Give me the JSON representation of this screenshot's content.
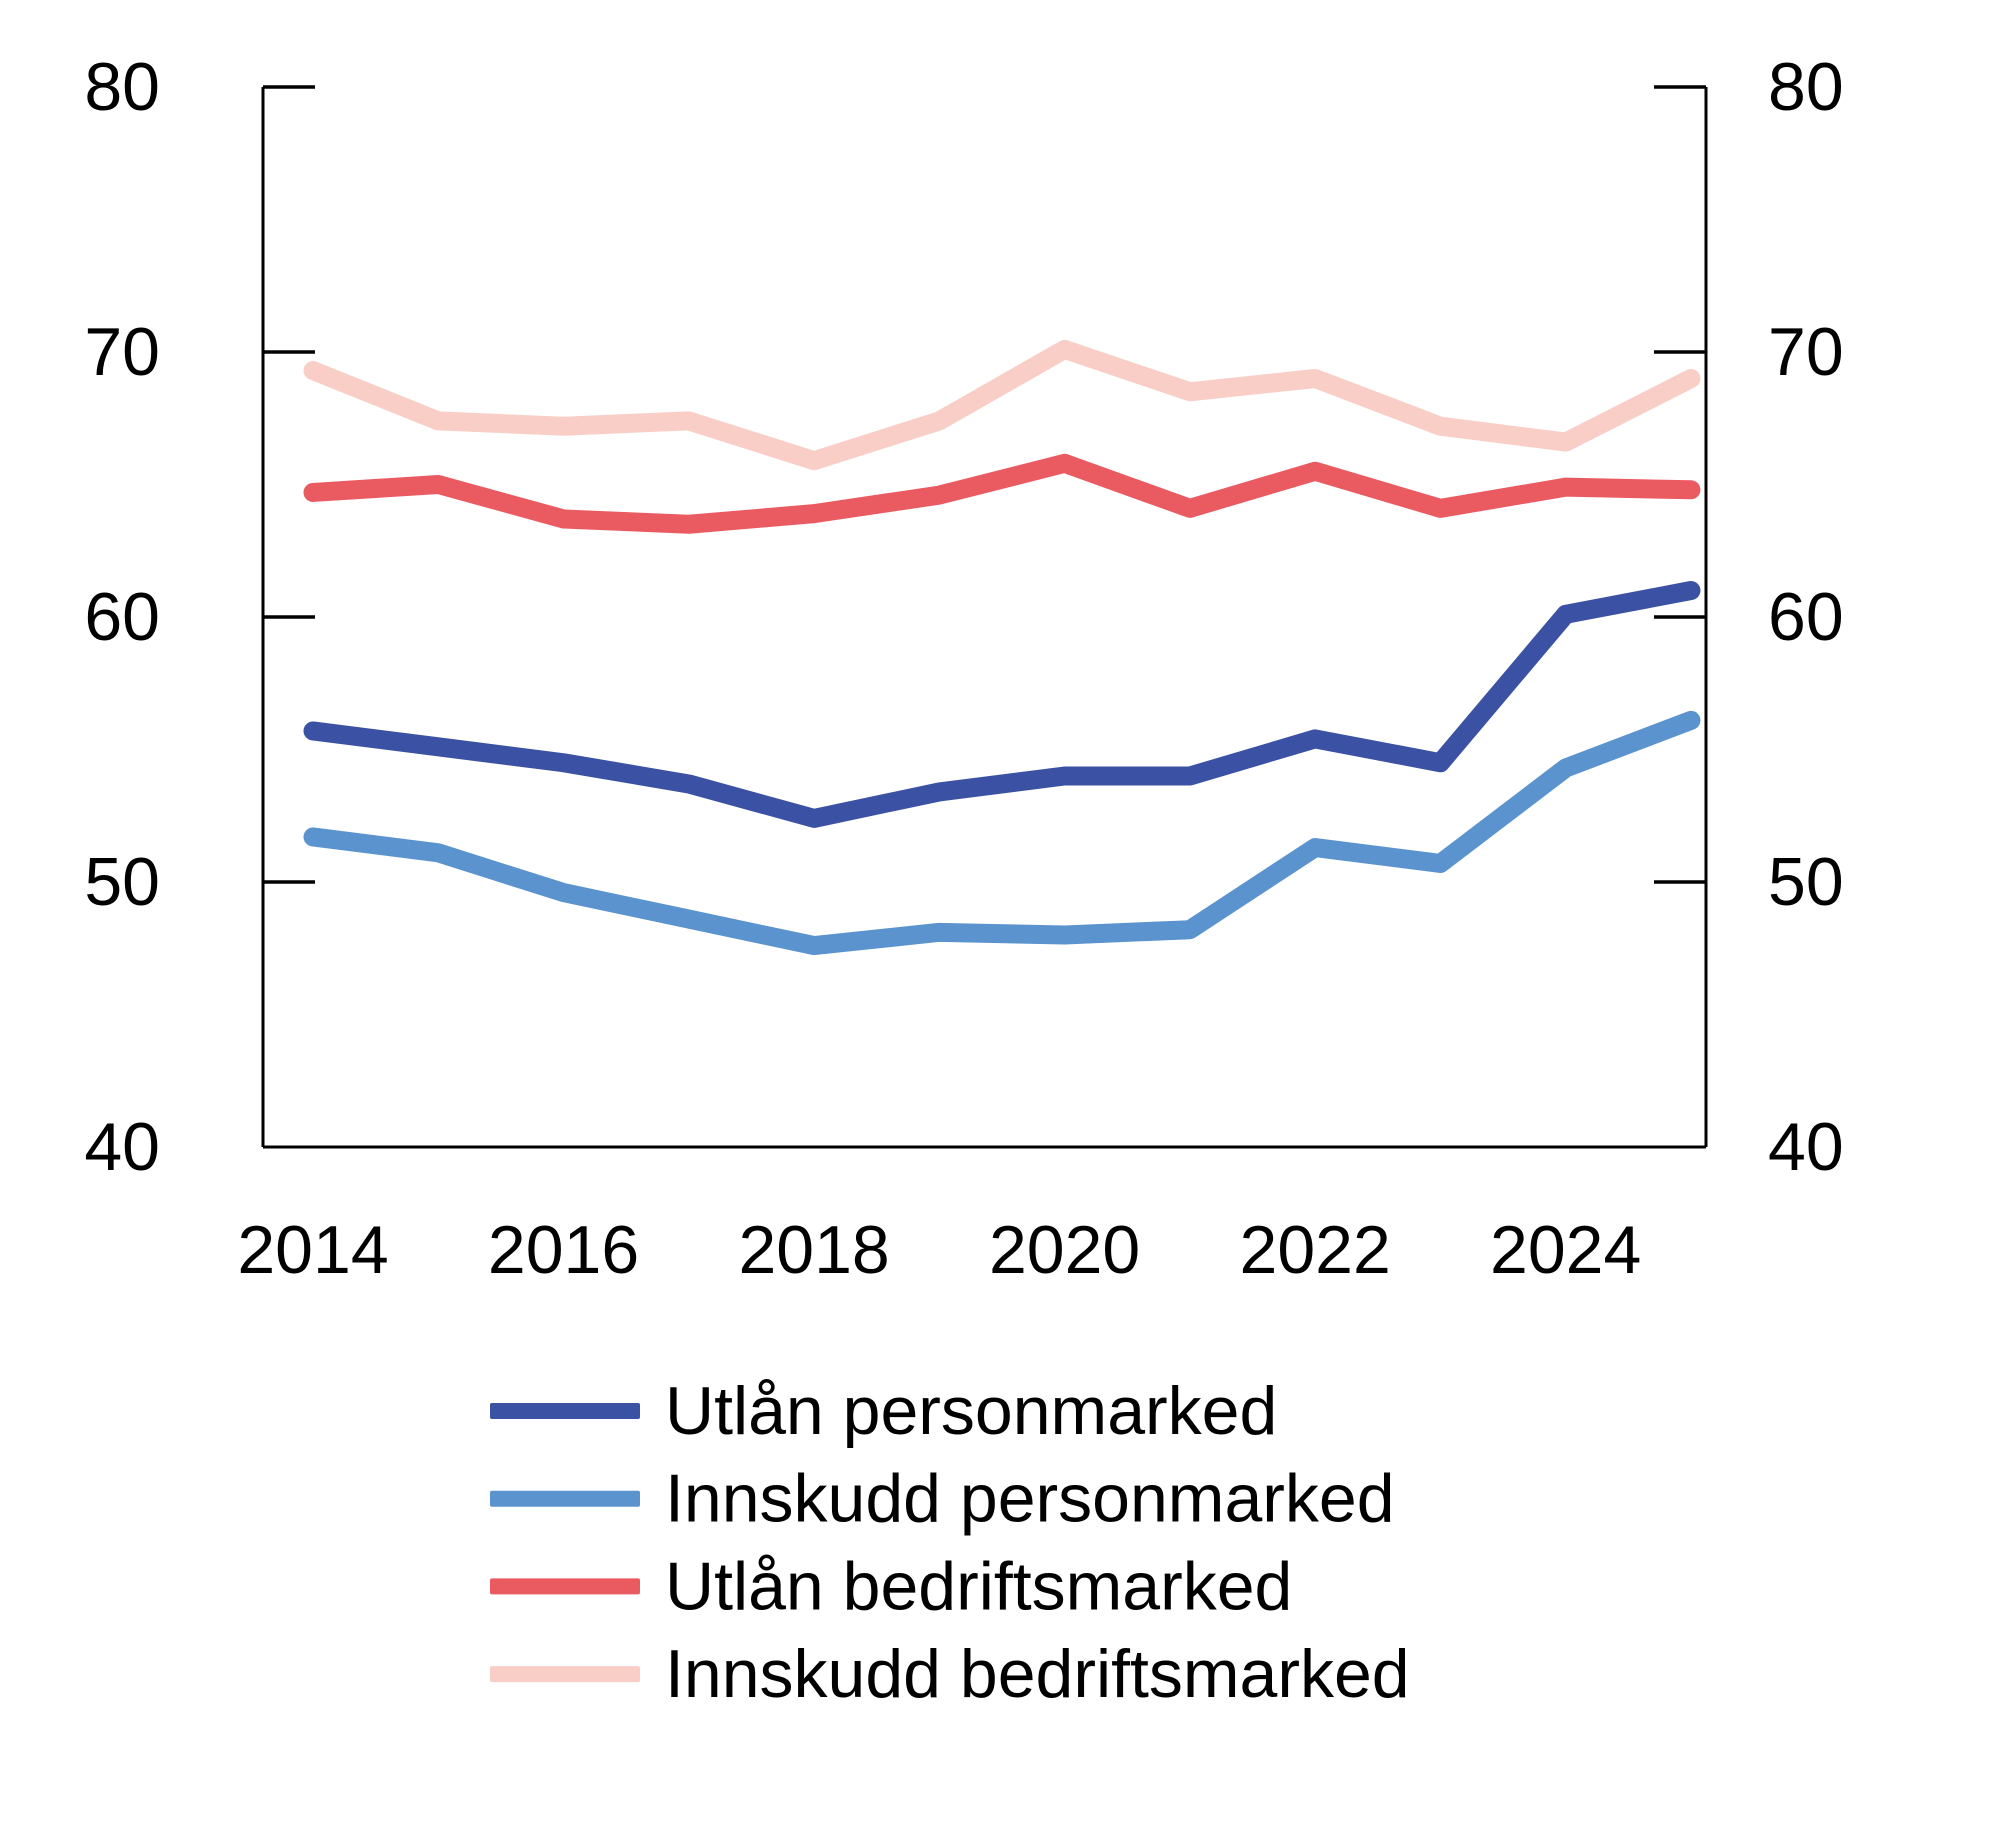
{
  "figure": {
    "background_color": "#ffffff",
    "text_color": "#000000",
    "axis_color": "#000000"
  },
  "chart_data": {
    "type": "line",
    "x": [
      2014,
      2015,
      2016,
      2017,
      2018,
      2019,
      2020,
      2021,
      2022,
      2023,
      2024,
      2025
    ],
    "series": [
      {
        "name": "Utlån personmarked",
        "color": "#3B51A3",
        "values": [
          55.7,
          55.1,
          54.5,
          53.7,
          52.4,
          53.4,
          54.0,
          54.0,
          55.4,
          54.5,
          60.1,
          61.0
        ]
      },
      {
        "name": "Innskudd personmarked",
        "color": "#5B93CE",
        "values": [
          51.7,
          51.1,
          49.6,
          48.6,
          47.6,
          48.1,
          48.0,
          48.2,
          51.3,
          50.7,
          54.3,
          56.1
        ]
      },
      {
        "name": "Utlån bedriftsmarked",
        "color": "#EA5A61",
        "values": [
          64.7,
          65.0,
          63.7,
          63.5,
          63.9,
          64.6,
          65.8,
          64.1,
          65.5,
          64.1,
          64.9,
          64.8
        ]
      },
      {
        "name": "Innskudd bedriftsmarked",
        "color": "#F9CEC7",
        "values": [
          69.3,
          67.4,
          67.2,
          67.4,
          65.9,
          67.4,
          70.1,
          68.5,
          69.0,
          67.2,
          66.6,
          69.0
        ]
      }
    ],
    "title": "",
    "xlabel": "",
    "ylabel": "",
    "ylim": [
      40,
      80
    ],
    "y_ticks": [
      40,
      50,
      60,
      70,
      80
    ],
    "y_tick_labels": [
      "40",
      "50",
      "60",
      "70",
      "80"
    ],
    "x_tick_years": [
      2014,
      2016,
      2018,
      2020,
      2022,
      2024
    ],
    "x_tick_labels": [
      "2014",
      "2016",
      "2018",
      "2020",
      "2022",
      "2024"
    ],
    "dual_y_axis": true,
    "grid": false,
    "legend_position": "bottom-left"
  }
}
